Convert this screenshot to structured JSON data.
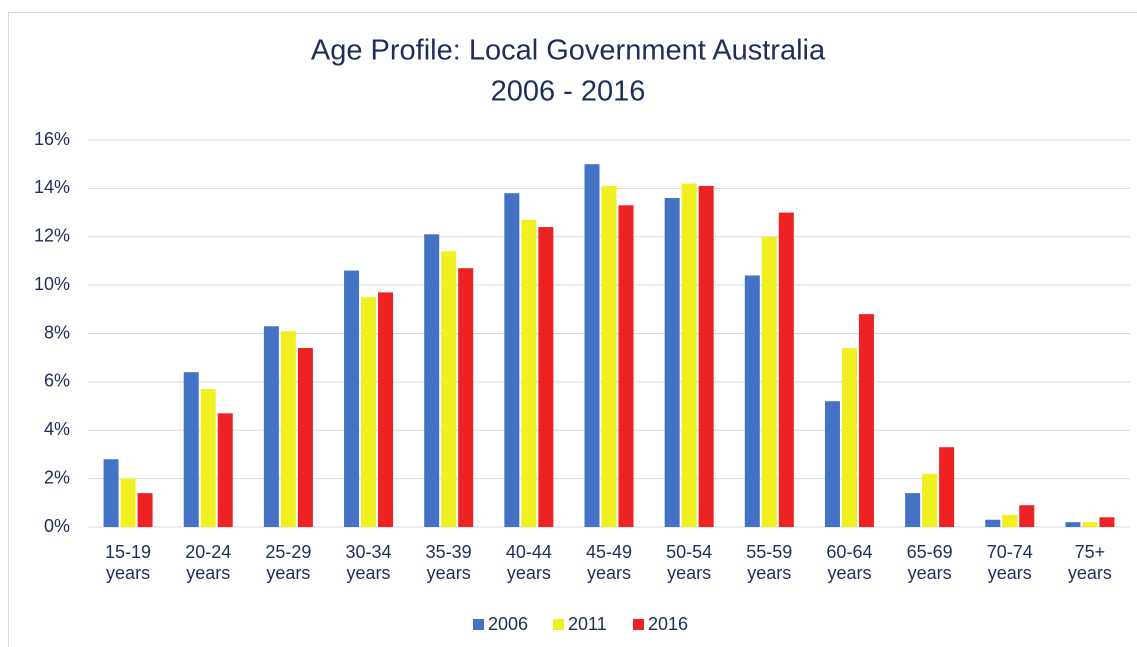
{
  "chart_data": {
    "type": "bar",
    "title": [
      "Age Profile: Local Government Australia",
      "2006 - 2016"
    ],
    "categories": [
      "15-19 years",
      "20-24 years",
      "25-29 years",
      "30-34 years",
      "35-39 years",
      "40-44 years",
      "45-49 years",
      "50-54 years",
      "55-59 years",
      "60-64 years",
      "65-69 years",
      "70-74 years",
      "75+ years"
    ],
    "series": [
      {
        "name": "2006",
        "color": "#4472c4",
        "values": [
          2.8,
          6.4,
          8.3,
          10.6,
          12.1,
          13.8,
          15.0,
          13.6,
          10.4,
          5.2,
          1.4,
          0.3,
          0.2
        ]
      },
      {
        "name": "2011",
        "color": "#f0f020",
        "values": [
          2.0,
          5.7,
          8.1,
          9.5,
          11.4,
          12.7,
          14.1,
          14.2,
          12.0,
          7.4,
          2.2,
          0.5,
          0.2
        ]
      },
      {
        "name": "2016",
        "color": "#ee2222",
        "values": [
          1.4,
          4.7,
          7.4,
          9.7,
          10.7,
          12.4,
          13.3,
          14.1,
          13.0,
          8.8,
          3.3,
          0.9,
          0.4
        ]
      }
    ],
    "ylim": [
      0,
      16
    ],
    "yticks": [
      {
        "value": 0,
        "label": "0%"
      },
      {
        "value": 2,
        "label": "2%"
      },
      {
        "value": 4,
        "label": "4%"
      },
      {
        "value": 6,
        "label": "6%"
      },
      {
        "value": 8,
        "label": "8%"
      },
      {
        "value": 10,
        "label": "10%"
      },
      {
        "value": 12,
        "label": "12%"
      },
      {
        "value": 14,
        "label": "14%"
      },
      {
        "value": 16,
        "label": "16%"
      }
    ],
    "grid": true,
    "legend": "bottom"
  }
}
